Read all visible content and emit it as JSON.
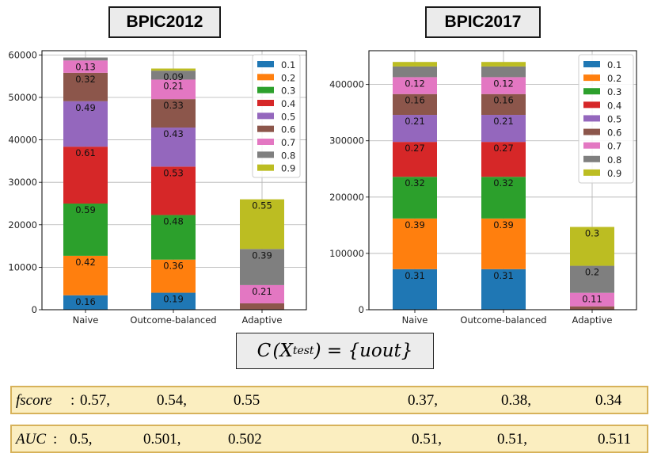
{
  "titles": {
    "left": "BPIC2012",
    "right": "BPIC2017"
  },
  "formula": {
    "c": "C",
    "lp": "(X",
    "sub": "test",
    "rp": ")",
    "eq": "= {uout}"
  },
  "metrics": {
    "fscore": {
      "label": "fscore",
      "colon": ":",
      "left": [
        "0.57,",
        "0.54,",
        "0.55"
      ],
      "right": [
        "0.37,",
        "0.38,",
        "0.34"
      ]
    },
    "auc": {
      "label": "AUC",
      "colon": ":",
      "left": [
        "0.5,",
        "0.501,",
        "0.502"
      ],
      "right": [
        "0.51,",
        "0.51,",
        "0.511"
      ]
    }
  },
  "chart_data": [
    {
      "type": "bar",
      "stacked": true,
      "title": "BPIC2012",
      "categories": [
        "Naive",
        "Outcome-balanced",
        "Adaptive"
      ],
      "ylim": [
        0,
        61000
      ],
      "yticks": [
        0,
        10000,
        20000,
        30000,
        40000,
        50000,
        60000
      ],
      "ytick_labels": [
        "0",
        "10000",
        "20000",
        "30000",
        "40000",
        "50000",
        "60000"
      ],
      "grid": true,
      "legend_position": "top-right",
      "series": [
        {
          "name": "0.1",
          "color": "#1f77b4",
          "values": [
            3400,
            4000,
            0
          ],
          "labels": [
            "0.16",
            "0.19",
            ""
          ]
        },
        {
          "name": "0.2",
          "color": "#ff7f0e",
          "values": [
            9300,
            7800,
            0
          ],
          "labels": [
            "0.42",
            "0.36",
            ""
          ]
        },
        {
          "name": "0.3",
          "color": "#2ca02c",
          "values": [
            12300,
            10500,
            0
          ],
          "labels": [
            "0.59",
            "0.48",
            ""
          ]
        },
        {
          "name": "0.4",
          "color": "#d62728",
          "values": [
            13400,
            11400,
            0
          ],
          "labels": [
            "0.61",
            "0.53",
            ""
          ]
        },
        {
          "name": "0.5",
          "color": "#9467bd",
          "values": [
            10700,
            9200,
            0
          ],
          "labels": [
            "0.49",
            "0.43",
            ""
          ]
        },
        {
          "name": "0.6",
          "color": "#8c564b",
          "values": [
            6700,
            6700,
            1500
          ],
          "labels": [
            "0.32",
            "0.33",
            ""
          ]
        },
        {
          "name": "0.7",
          "color": "#e377c2",
          "values": [
            2900,
            4600,
            4300
          ],
          "labels": [
            "0.13",
            "0.21",
            "0.21"
          ]
        },
        {
          "name": "0.8",
          "color": "#7f7f7f",
          "values": [
            700,
            2100,
            8500
          ],
          "labels": [
            "",
            "0.09",
            "0.39"
          ]
        },
        {
          "name": "0.9",
          "color": "#bcbd22",
          "values": [
            0,
            500,
            11700
          ],
          "labels": [
            "",
            "",
            "0.55"
          ]
        }
      ]
    },
    {
      "type": "bar",
      "stacked": true,
      "title": "BPIC2017",
      "categories": [
        "Naive",
        "Outcome-balanced",
        "Adaptive"
      ],
      "ylim": [
        0,
        460000
      ],
      "yticks": [
        0,
        100000,
        200000,
        300000,
        400000
      ],
      "ytick_labels": [
        "0",
        "100000",
        "200000",
        "300000",
        "400000"
      ],
      "grid": true,
      "legend_position": "top-right",
      "series": [
        {
          "name": "0.1",
          "color": "#1f77b4",
          "values": [
            72000,
            72000,
            0
          ],
          "labels": [
            "0.31",
            "0.31",
            ""
          ]
        },
        {
          "name": "0.2",
          "color": "#ff7f0e",
          "values": [
            90000,
            90000,
            0
          ],
          "labels": [
            "0.39",
            "0.39",
            ""
          ]
        },
        {
          "name": "0.3",
          "color": "#2ca02c",
          "values": [
            74000,
            74000,
            0
          ],
          "labels": [
            "0.32",
            "0.32",
            ""
          ]
        },
        {
          "name": "0.4",
          "color": "#d62728",
          "values": [
            62000,
            62000,
            0
          ],
          "labels": [
            "0.27",
            "0.27",
            ""
          ]
        },
        {
          "name": "0.5",
          "color": "#9467bd",
          "values": [
            48000,
            48000,
            0
          ],
          "labels": [
            "0.21",
            "0.21",
            ""
          ]
        },
        {
          "name": "0.6",
          "color": "#8c564b",
          "values": [
            37000,
            37000,
            6000
          ],
          "labels": [
            "0.16",
            "0.16",
            ""
          ]
        },
        {
          "name": "0.7",
          "color": "#e377c2",
          "values": [
            30000,
            30000,
            24000
          ],
          "labels": [
            "0.12",
            "0.12",
            "0.11"
          ]
        },
        {
          "name": "0.8",
          "color": "#7f7f7f",
          "values": [
            19000,
            19000,
            48000
          ],
          "labels": [
            "",
            "",
            "0.2"
          ]
        },
        {
          "name": "0.9",
          "color": "#bcbd22",
          "values": [
            8000,
            8000,
            69000
          ],
          "labels": [
            "",
            "",
            "0.3"
          ]
        }
      ]
    }
  ]
}
